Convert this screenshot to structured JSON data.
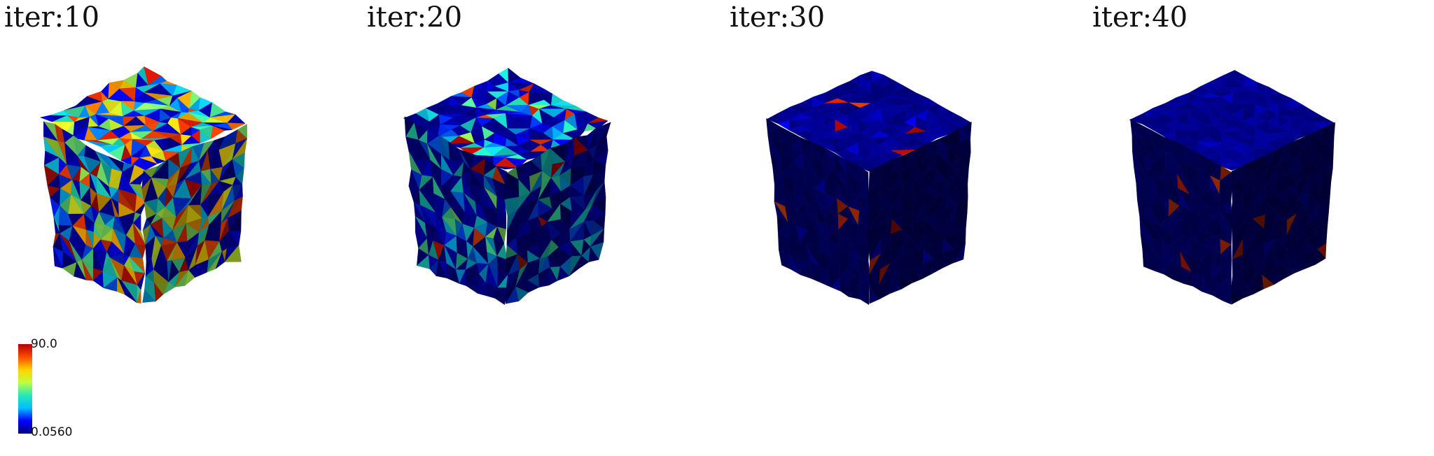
{
  "panels": [
    {
      "label": "iter:10",
      "mesh": {
        "quality_spread": 1.0,
        "seed": 11
      }
    },
    {
      "label": "iter:20",
      "mesh": {
        "quality_spread": 0.55,
        "seed": 23
      }
    },
    {
      "label": "iter:30",
      "mesh": {
        "quality_spread": 0.12,
        "seed": 37
      }
    },
    {
      "label": "iter:40",
      "mesh": {
        "quality_spread": 0.07,
        "seed": 41
      }
    }
  ],
  "colorbar": {
    "max_label": "90.0",
    "min_label": "0.0560",
    "colormap": "jet",
    "colors": [
      "#00007f",
      "#0000ff",
      "#00bfff",
      "#27e8b8",
      "#bfff3f",
      "#ffd200",
      "#ff4a00",
      "#b40000"
    ]
  }
}
